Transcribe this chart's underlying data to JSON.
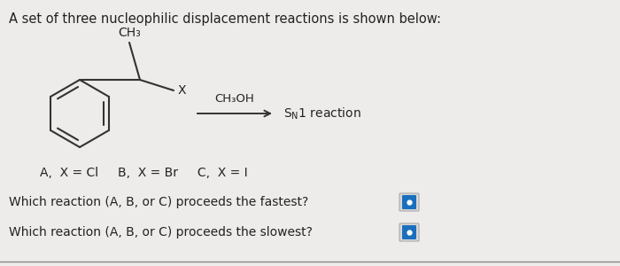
{
  "background_color": "#edecea",
  "title_text": "A set of three nucleophilic displacement reactions is shown below:",
  "title_fontsize": 10.5,
  "ch3_label": "CH₃",
  "x_label": "X",
  "reagent_label": "CH₃OH",
  "sn1_label": "S",
  "n_sub": "N",
  "one_label": "1 reaction",
  "options_text": "A,  X = Cl     B,  X = Br     C,  X = I",
  "question1": "Which reaction (A, B, or C) proceeds the fastest?",
  "question2": "Which reaction (A, B, or C) proceeds the slowest?",
  "text_color": "#222222",
  "line_color": "#333333",
  "button_color": "#1a6fbd",
  "button_border": "#b0b8c8"
}
